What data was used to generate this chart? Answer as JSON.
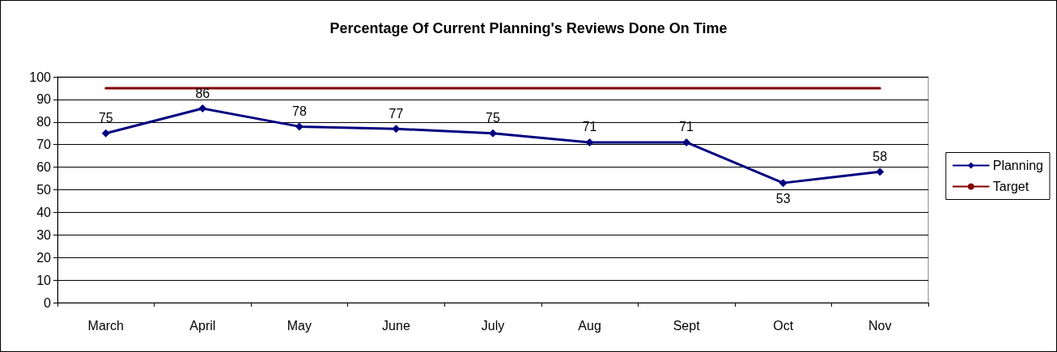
{
  "chart_data": {
    "type": "line",
    "title": "Percentage Of Current Planning's Reviews Done On Time",
    "categories": [
      "March",
      "April",
      "May",
      "June",
      "July",
      "Aug",
      "Sept",
      "Oct",
      "Nov"
    ],
    "series": [
      {
        "name": "Planning",
        "color": "#000080",
        "marker": "diamond",
        "values": [
          75,
          86,
          78,
          77,
          75,
          71,
          71,
          53,
          58
        ],
        "value_labels": [
          "75",
          "86",
          "78",
          "77",
          "75",
          "71",
          "71",
          "53",
          "58"
        ]
      },
      {
        "name": "Target",
        "color": "#800000",
        "marker": "none",
        "values": [
          95,
          95,
          95,
          95,
          95,
          95,
          95,
          95,
          95
        ]
      }
    ],
    "ylim": [
      0,
      100
    ],
    "yticks": [
      0,
      10,
      20,
      30,
      40,
      50,
      60,
      70,
      80,
      90,
      100
    ],
    "grid": "y",
    "legend": "right",
    "line_style": "solid"
  }
}
